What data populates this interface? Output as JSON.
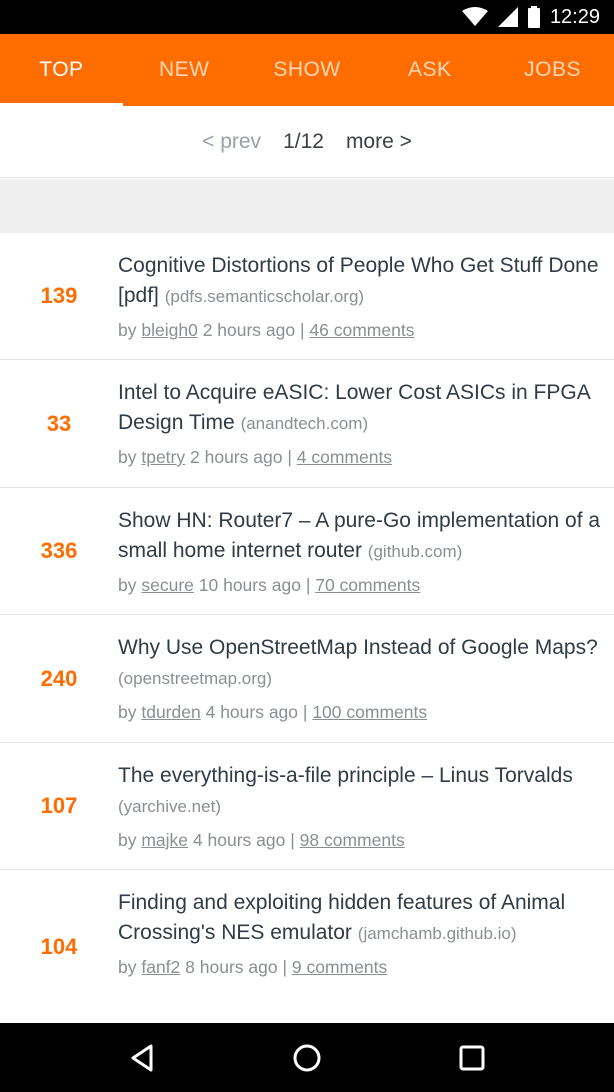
{
  "status": {
    "time": "12:29",
    "icons": [
      "wifi-icon",
      "cellular-signal-icon",
      "battery-icon"
    ]
  },
  "tabs": [
    {
      "label": "TOP",
      "active": true
    },
    {
      "label": "NEW",
      "active": false
    },
    {
      "label": "SHOW",
      "active": false
    },
    {
      "label": "ASK",
      "active": false
    },
    {
      "label": "JOBS",
      "active": false
    }
  ],
  "pager": {
    "prev": "< prev",
    "page": "1/12",
    "more": "more >"
  },
  "stories": [
    {
      "score": "139",
      "title": "Cognitive Distortions of People Who Get Stuff Done [pdf]",
      "domain": "(pdfs.semanticscholar.org)",
      "by": "by",
      "user": "bleigh0",
      "age": "2 hours ago",
      "sep": "|",
      "comments": "46 comments"
    },
    {
      "score": "33",
      "title": "Intel to Acquire eASIC: Lower Cost ASICs in FPGA Design Time",
      "domain": "(anandtech.com)",
      "by": "by",
      "user": "tpetry",
      "age": "2 hours ago",
      "sep": "|",
      "comments": "4 comments"
    },
    {
      "score": "336",
      "title": "Show HN: Router7 – A pure-Go implementation of a small home internet router",
      "domain": "(github.com)",
      "by": "by",
      "user": "secure",
      "age": "10 hours ago",
      "sep": "|",
      "comments": "70 comments"
    },
    {
      "score": "240",
      "title": "Why Use OpenStreetMap Instead of Google Maps?",
      "domain": "(openstreetmap.org)",
      "by": "by",
      "user": "tdurden",
      "age": "4 hours ago",
      "sep": "|",
      "comments": "100 comments"
    },
    {
      "score": "107",
      "title": "The everything-is-a-file principle – Linus Torvalds",
      "domain": "(yarchive.net)",
      "by": "by",
      "user": "majke",
      "age": "4 hours ago",
      "sep": "|",
      "comments": "98 comments"
    },
    {
      "score": "104",
      "title": "Finding and exploiting hidden features of Animal Crossing's NES emulator",
      "domain": "(jamchamb.github.io)",
      "by": "by",
      "user": "fanf2",
      "age": "8 hours ago",
      "sep": "|",
      "comments": "9 comments"
    }
  ],
  "colors": {
    "accent": "#ff6d00",
    "title_text": "#2f3b45",
    "muted_text": "#8a8f94"
  },
  "nav": {
    "icons": [
      "back-icon",
      "home-icon",
      "recents-icon"
    ]
  }
}
